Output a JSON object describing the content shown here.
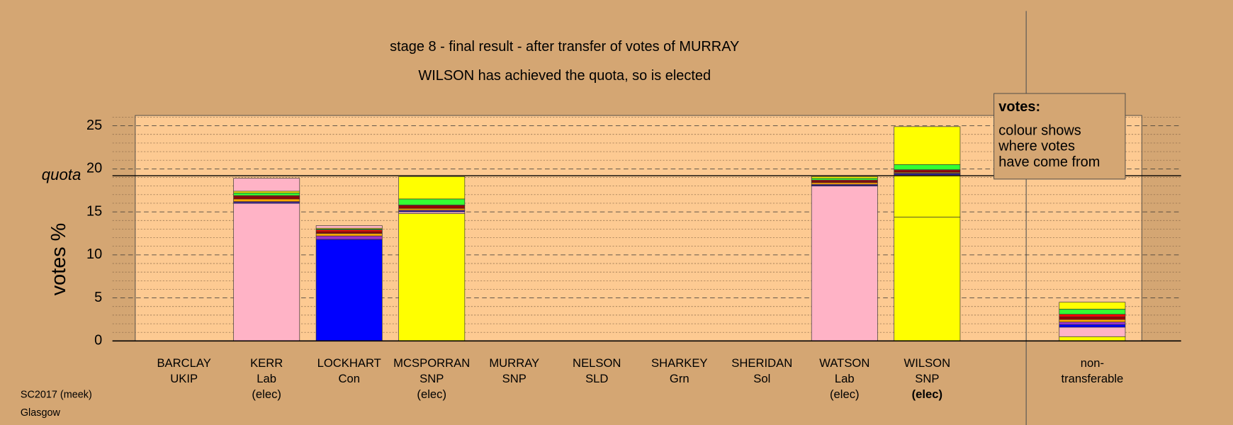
{
  "chart_data": {
    "type": "stacked_bar",
    "title": "stage 8 - final result - after transfer of votes of MURRAY",
    "subtitle": "WILSON has achieved the quota, so is elected",
    "y_label": "votes %",
    "quota_label": "quota",
    "quota": 19.2,
    "legend": {
      "title": "votes:",
      "lines": [
        "colour shows",
        "where votes",
        "have come from"
      ]
    },
    "footer": [
      "SC2017 (meek)",
      "Glasgow"
    ],
    "categories": [
      [
        "BARCLAY",
        "UKIP"
      ],
      [
        "KERR",
        "Lab",
        "(elec)"
      ],
      [
        "LOCKHART",
        "Con"
      ],
      [
        "MCSPORRAN",
        "SNP",
        "(elec)"
      ],
      [
        "MURRAY",
        "SNP"
      ],
      [
        "NELSON",
        "SLD"
      ],
      [
        "SHARKEY",
        "Grn"
      ],
      [
        "SHERIDAN",
        "Sol"
      ],
      [
        "WATSON",
        "Lab",
        "(elec)"
      ],
      [
        "WILSON",
        "SNP",
        "(elec)"
      ],
      [
        "non-",
        "transferable"
      ]
    ],
    "bold_category": 9,
    "ylim": [
      0,
      26.2
    ],
    "yticks": [
      0,
      5,
      10,
      15,
      20,
      25
    ],
    "minor_yticks": [
      1,
      2,
      3,
      4,
      6,
      7,
      8,
      9,
      11,
      12,
      13,
      14,
      16,
      17,
      18,
      19,
      21,
      22,
      23,
      24,
      26
    ],
    "grid": true,
    "series": [
      {
        "color": "#ffff00",
        "values": [
          0,
          0,
          0,
          14.8,
          0,
          0,
          0,
          0,
          0,
          14.4,
          0.5
        ]
      },
      {
        "color": "#ffff00",
        "values": [
          0,
          0,
          0,
          0,
          0,
          0,
          0,
          0,
          0,
          4.8,
          0
        ]
      },
      {
        "color": "#ffb3c6",
        "values": [
          0,
          16.0,
          0,
          0.2,
          0,
          0,
          0,
          0,
          18.0,
          0.1,
          1.1
        ]
      },
      {
        "color": "#0000ff",
        "values": [
          0,
          0.1,
          11.8,
          0.1,
          0,
          0,
          0,
          0,
          0.1,
          0.1,
          0.3
        ]
      },
      {
        "color": "#9933cc",
        "values": [
          0,
          0.1,
          0.4,
          0.1,
          0,
          0,
          0,
          0,
          0.1,
          0.1,
          0.3
        ]
      },
      {
        "color": "#ffa500",
        "values": [
          0,
          0.3,
          0.3,
          0.2,
          0,
          0,
          0,
          0,
          0.2,
          0.1,
          0.3
        ]
      },
      {
        "color": "#990000",
        "values": [
          0,
          0.3,
          0.2,
          0.3,
          0,
          0,
          0,
          0,
          0.2,
          0.2,
          0.3
        ]
      },
      {
        "color": "#ff0000",
        "values": [
          0,
          0.1,
          0.2,
          0.1,
          0,
          0,
          0,
          0,
          0.1,
          0.1,
          0.3
        ]
      },
      {
        "color": "#33ff33",
        "values": [
          0,
          0.3,
          0.1,
          0.7,
          0,
          0,
          0,
          0,
          0.2,
          0.6,
          0.6
        ]
      },
      {
        "color": "#ffff00",
        "values": [
          0,
          0.2,
          0.1,
          2.6,
          0,
          0,
          0,
          0,
          0.2,
          4.4,
          0.8
        ]
      },
      {
        "color": "#ffb3c6",
        "values": [
          0,
          1.5,
          0.3,
          0,
          0,
          0,
          0,
          0,
          0,
          0,
          0
        ]
      }
    ]
  }
}
